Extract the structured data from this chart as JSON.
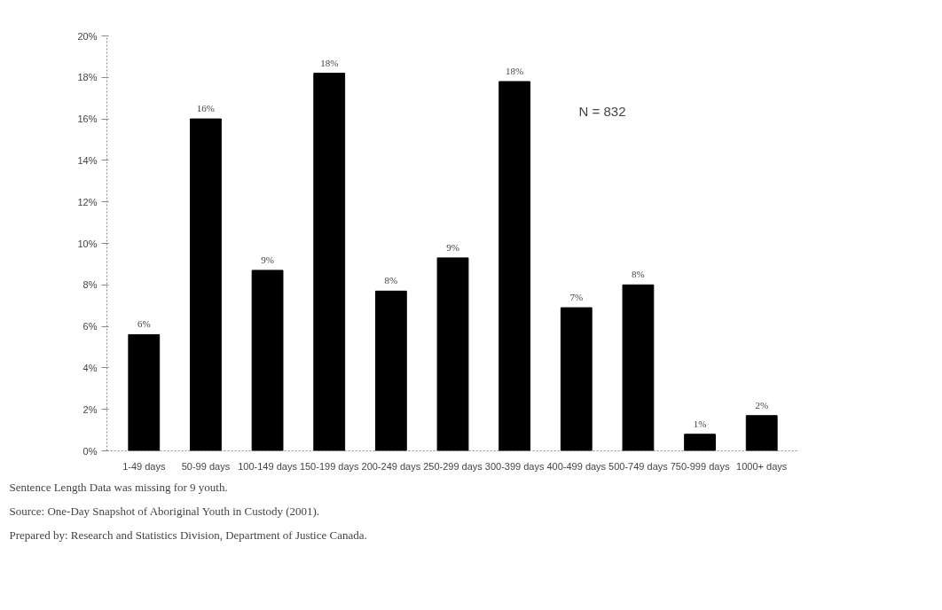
{
  "chart_data": {
    "type": "bar",
    "categories": [
      "1-49 days",
      "50-99 days",
      "100-149 days",
      "150-199 days",
      "200-249 days",
      "250-299 days",
      "300-399 days",
      "400-499 days",
      "500-749 days",
      "750-999 days",
      "1000+ days"
    ],
    "values": [
      5.6,
      16.0,
      8.7,
      18.2,
      7.7,
      9.3,
      17.8,
      6.9,
      8.0,
      0.8,
      1.7
    ],
    "value_labels": [
      "6%",
      "16%",
      "9%",
      "18%",
      "8%",
      "9%",
      "18%",
      "7%",
      "8%",
      "1%",
      "2%"
    ],
    "color": "#000000",
    "ylim": [
      0,
      20
    ],
    "yticks": [
      {
        "value": 0,
        "label": "0%"
      },
      {
        "value": 2,
        "label": "2%"
      },
      {
        "value": 4,
        "label": "4%"
      },
      {
        "value": 6,
        "label": "6%"
      },
      {
        "value": 8,
        "label": "8%"
      },
      {
        "value": 10,
        "label": "10%"
      },
      {
        "value": 12,
        "label": "12%"
      },
      {
        "value": 14,
        "label": "14%"
      },
      {
        "value": 16,
        "label": "16%"
      },
      {
        "value": 18,
        "label": "18%"
      },
      {
        "value": 20,
        "label": "20%"
      }
    ],
    "grid": false,
    "annotations": [
      "N = 832",
      "Sentence Length Data was missing for 9 youth.",
      "Source: One-Day Snapshot of Aboriginal Youth in Custody (2001).",
      "Prepared by: Research and Statistics Division, Department of Justice Canada."
    ]
  }
}
